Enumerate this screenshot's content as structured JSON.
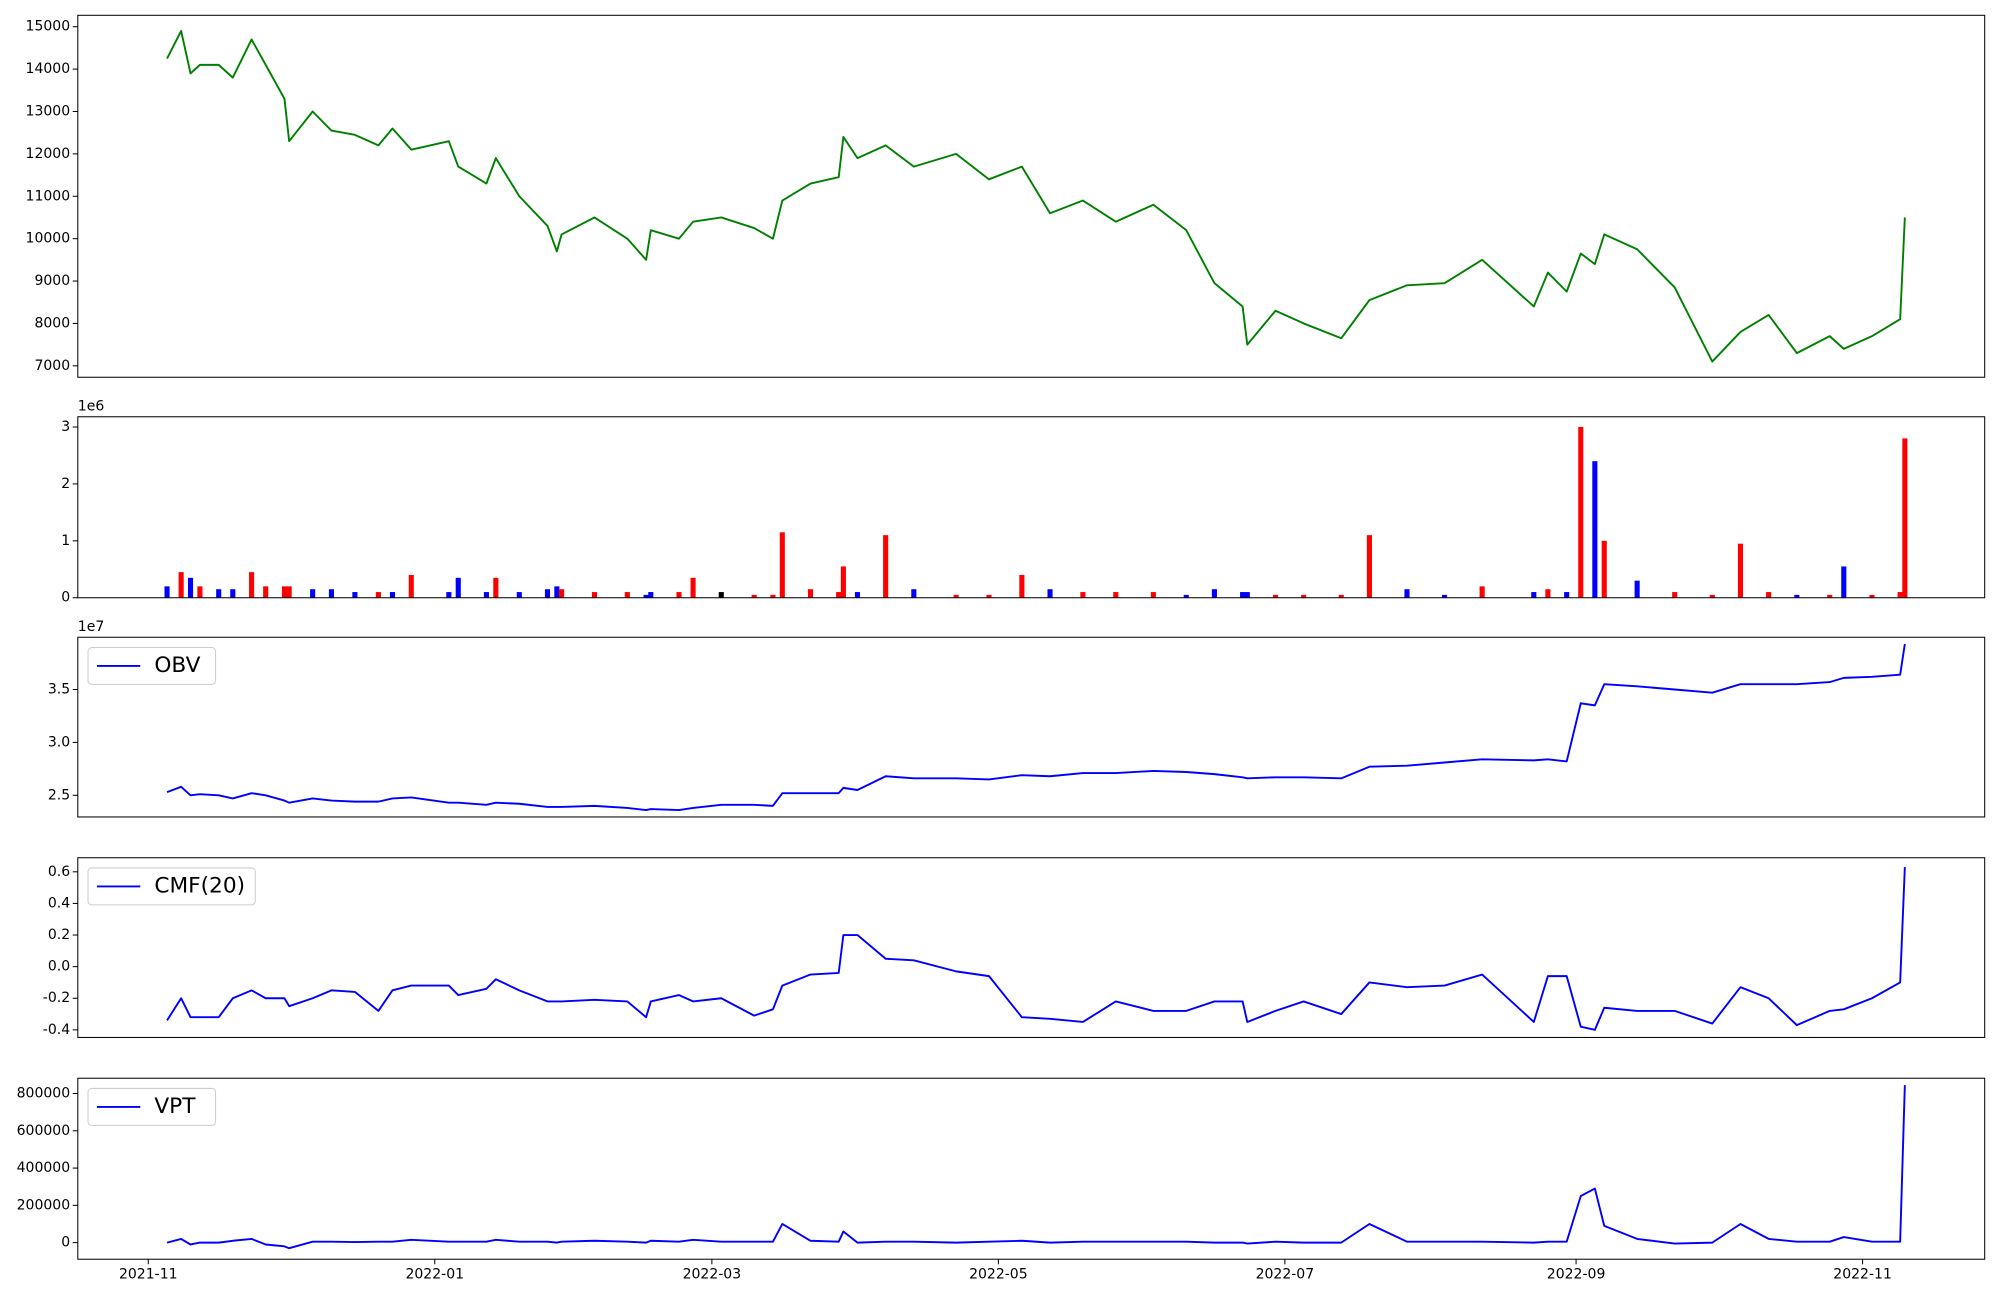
{
  "chart_data": [
    {
      "type": "line",
      "color": "#008000",
      "x": [
        "2021-11-05",
        "2021-11-08",
        "2021-11-10",
        "2021-11-12",
        "2021-11-16",
        "2021-11-19",
        "2021-11-23",
        "2021-11-26",
        "2021-11-30",
        "2021-12-01",
        "2021-12-06",
        "2021-12-10",
        "2021-12-15",
        "2021-12-20",
        "2021-12-23",
        "2021-12-27",
        "2022-01-04",
        "2022-01-06",
        "2022-01-12",
        "2022-01-14",
        "2022-01-19",
        "2022-01-25",
        "2022-01-27",
        "2022-01-28",
        "2022-02-04",
        "2022-02-11",
        "2022-02-15",
        "2022-02-16",
        "2022-02-22",
        "2022-02-25",
        "2022-03-03",
        "2022-03-10",
        "2022-03-14",
        "2022-03-16",
        "2022-03-22",
        "2022-03-28",
        "2022-03-29",
        "2022-04-01",
        "2022-04-07",
        "2022-04-13",
        "2022-04-22",
        "2022-04-29",
        "2022-05-06",
        "2022-05-12",
        "2022-05-19",
        "2022-05-26",
        "2022-06-03",
        "2022-06-10",
        "2022-06-16",
        "2022-06-22",
        "2022-06-23",
        "2022-06-29",
        "2022-07-05",
        "2022-07-13",
        "2022-07-19",
        "2022-07-27",
        "2022-08-04",
        "2022-08-12",
        "2022-08-23",
        "2022-08-26",
        "2022-08-30",
        "2022-09-02",
        "2022-09-05",
        "2022-09-07",
        "2022-09-14",
        "2022-09-22",
        "2022-09-30",
        "2022-10-06",
        "2022-10-12",
        "2022-10-18",
        "2022-10-25",
        "2022-10-28",
        "2022-11-03",
        "2022-11-09",
        "2022-11-10"
      ],
      "values": [
        14250,
        14900,
        13900,
        14100,
        14100,
        13800,
        14700,
        14100,
        13300,
        12300,
        13000,
        12550,
        12450,
        12200,
        12600,
        12100,
        12300,
        11700,
        11300,
        11900,
        11000,
        10300,
        9700,
        10100,
        10500,
        10000,
        9500,
        10200,
        10000,
        10400,
        10500,
        10250,
        10000,
        10900,
        11300,
        11450,
        12400,
        11900,
        12200,
        11700,
        12000,
        11400,
        11700,
        10600,
        10900,
        10400,
        10800,
        10200,
        8950,
        8400,
        7500,
        8300,
        8000,
        7650,
        8550,
        8900,
        8950,
        9500,
        8400,
        9200,
        8750,
        9650,
        9400,
        10100,
        9750,
        8850,
        7100,
        7800,
        8200,
        7300,
        7700,
        7400,
        7700,
        8100,
        10500
      ],
      "xlim": [
        "2021-10-17",
        "2022-11-27"
      ],
      "ylim": [
        6730,
        15270
      ],
      "yticks": [
        7000,
        8000,
        9000,
        10000,
        11000,
        12000,
        13000,
        14000,
        15000
      ]
    },
    {
      "type": "bar",
      "y_offset_label": "1e6",
      "x": [
        "2021-11-05",
        "2021-11-08",
        "2021-11-10",
        "2021-11-12",
        "2021-11-16",
        "2021-11-19",
        "2021-11-23",
        "2021-11-26",
        "2021-11-30",
        "2021-12-01",
        "2021-12-06",
        "2021-12-10",
        "2021-12-15",
        "2021-12-20",
        "2021-12-23",
        "2021-12-27",
        "2022-01-04",
        "2022-01-06",
        "2022-01-12",
        "2022-01-14",
        "2022-01-19",
        "2022-01-25",
        "2022-01-27",
        "2022-01-28",
        "2022-02-04",
        "2022-02-11",
        "2022-02-15",
        "2022-02-16",
        "2022-02-22",
        "2022-02-25",
        "2022-03-03",
        "2022-03-10",
        "2022-03-14",
        "2022-03-16",
        "2022-03-22",
        "2022-03-28",
        "2022-03-29",
        "2022-04-01",
        "2022-04-07",
        "2022-04-13",
        "2022-04-22",
        "2022-04-29",
        "2022-05-06",
        "2022-05-12",
        "2022-05-19",
        "2022-05-26",
        "2022-06-03",
        "2022-06-10",
        "2022-06-16",
        "2022-06-22",
        "2022-06-23",
        "2022-06-29",
        "2022-07-05",
        "2022-07-13",
        "2022-07-19",
        "2022-07-27",
        "2022-08-04",
        "2022-08-12",
        "2022-08-23",
        "2022-08-26",
        "2022-08-30",
        "2022-09-02",
        "2022-09-05",
        "2022-09-07",
        "2022-09-14",
        "2022-09-22",
        "2022-09-30",
        "2022-10-06",
        "2022-10-12",
        "2022-10-18",
        "2022-10-25",
        "2022-10-28",
        "2022-11-03",
        "2022-11-09",
        "2022-11-10"
      ],
      "values": [
        0.2,
        0.45,
        0.35,
        0.2,
        0.15,
        0.15,
        0.45,
        0.2,
        0.2,
        0.2,
        0.15,
        0.15,
        0.1,
        0.1,
        0.1,
        0.4,
        0.1,
        0.35,
        0.1,
        0.35,
        0.1,
        0.15,
        0.2,
        0.15,
        0.1,
        0.1,
        0.05,
        0.1,
        0.1,
        0.35,
        0.1,
        0.05,
        0.05,
        1.15,
        0.15,
        0.1,
        0.55,
        0.1,
        1.1,
        0.15,
        0.05,
        0.05,
        0.4,
        0.15,
        0.1,
        0.1,
        0.1,
        0.05,
        0.15,
        0.1,
        0.1,
        0.05,
        0.05,
        0.05,
        1.1,
        0.15,
        0.05,
        0.2,
        0.1,
        0.15,
        0.1,
        3.0,
        2.4,
        1.0,
        0.3,
        0.1,
        0.05,
        0.95,
        0.1,
        0.05,
        0.05,
        0.55,
        0.05,
        0.1,
        2.8
      ],
      "colors": [
        "blue",
        "red",
        "blue",
        "red",
        "blue",
        "blue",
        "red",
        "red",
        "red",
        "red",
        "blue",
        "blue",
        "blue",
        "red",
        "blue",
        "red",
        "blue",
        "blue",
        "blue",
        "red",
        "blue",
        "blue",
        "blue",
        "red",
        "red",
        "red",
        "blue",
        "blue",
        "red",
        "red",
        "black",
        "red",
        "red",
        "red",
        "red",
        "red",
        "red",
        "blue",
        "red",
        "blue",
        "red",
        "red",
        "red",
        "blue",
        "red",
        "red",
        "red",
        "blue",
        "blue",
        "blue",
        "blue",
        "red",
        "red",
        "red",
        "red",
        "blue",
        "blue",
        "red",
        "blue",
        "red",
        "blue",
        "red",
        "blue",
        "red",
        "blue",
        "red",
        "red",
        "red",
        "red",
        "blue",
        "red",
        "blue",
        "red",
        "red",
        "red"
      ],
      "xlim": [
        "2021-10-17",
        "2022-11-27"
      ],
      "ylim": [
        0,
        3.18
      ],
      "yticks": [
        0,
        1,
        2,
        3
      ]
    },
    {
      "type": "line",
      "y_offset_label": "1e7",
      "legend": "upper left",
      "x": [
        "2021-11-05",
        "2021-11-08",
        "2021-11-10",
        "2021-11-12",
        "2021-11-16",
        "2021-11-19",
        "2021-11-23",
        "2021-11-26",
        "2021-11-30",
        "2021-12-01",
        "2021-12-06",
        "2021-12-10",
        "2021-12-15",
        "2021-12-20",
        "2021-12-23",
        "2021-12-27",
        "2022-01-04",
        "2022-01-06",
        "2022-01-12",
        "2022-01-14",
        "2022-01-19",
        "2022-01-25",
        "2022-01-27",
        "2022-01-28",
        "2022-02-04",
        "2022-02-11",
        "2022-02-15",
        "2022-02-16",
        "2022-02-22",
        "2022-02-25",
        "2022-03-03",
        "2022-03-10",
        "2022-03-14",
        "2022-03-16",
        "2022-03-22",
        "2022-03-28",
        "2022-03-29",
        "2022-04-01",
        "2022-04-07",
        "2022-04-13",
        "2022-04-22",
        "2022-04-29",
        "2022-05-06",
        "2022-05-12",
        "2022-05-19",
        "2022-05-26",
        "2022-06-03",
        "2022-06-10",
        "2022-06-16",
        "2022-06-22",
        "2022-06-23",
        "2022-06-29",
        "2022-07-05",
        "2022-07-13",
        "2022-07-19",
        "2022-07-27",
        "2022-08-04",
        "2022-08-12",
        "2022-08-23",
        "2022-08-26",
        "2022-08-30",
        "2022-09-02",
        "2022-09-05",
        "2022-09-07",
        "2022-09-14",
        "2022-09-22",
        "2022-09-30",
        "2022-10-06",
        "2022-10-12",
        "2022-10-18",
        "2022-10-25",
        "2022-10-28",
        "2022-11-03",
        "2022-11-09",
        "2022-11-10"
      ],
      "series": [
        {
          "name": "OBV",
          "color": "#0000ff",
          "values": [
            2.53,
            2.58,
            2.5,
            2.51,
            2.5,
            2.47,
            2.52,
            2.5,
            2.45,
            2.43,
            2.47,
            2.45,
            2.44,
            2.44,
            2.47,
            2.48,
            2.43,
            2.43,
            2.41,
            2.43,
            2.42,
            2.39,
            2.39,
            2.39,
            2.4,
            2.38,
            2.36,
            2.37,
            2.36,
            2.38,
            2.41,
            2.41,
            2.4,
            2.52,
            2.52,
            2.52,
            2.57,
            2.55,
            2.68,
            2.66,
            2.66,
            2.65,
            2.69,
            2.68,
            2.71,
            2.71,
            2.73,
            2.72,
            2.7,
            2.67,
            2.66,
            2.67,
            2.67,
            2.66,
            2.77,
            2.78,
            2.81,
            2.84,
            2.83,
            2.84,
            2.82,
            3.37,
            3.35,
            3.55,
            3.53,
            3.5,
            3.47,
            3.55,
            3.55,
            3.55,
            3.57,
            3.61,
            3.62,
            3.64,
            3.93
          ]
        }
      ],
      "xlim": [
        "2021-10-17",
        "2022-11-27"
      ],
      "ylim": [
        2.295,
        3.994
      ],
      "yticks": [
        2.5,
        {
          "value": 3,
          "label": "3.0"
        },
        3.5
      ]
    },
    {
      "type": "line",
      "legend": "upper left",
      "x": [
        "2021-11-05",
        "2021-11-08",
        "2021-11-10",
        "2021-11-12",
        "2021-11-16",
        "2021-11-19",
        "2021-11-23",
        "2021-11-26",
        "2021-11-30",
        "2021-12-01",
        "2021-12-06",
        "2021-12-10",
        "2021-12-15",
        "2021-12-20",
        "2021-12-23",
        "2021-12-27",
        "2022-01-04",
        "2022-01-06",
        "2022-01-12",
        "2022-01-14",
        "2022-01-19",
        "2022-01-25",
        "2022-01-27",
        "2022-01-28",
        "2022-02-04",
        "2022-02-11",
        "2022-02-15",
        "2022-02-16",
        "2022-02-22",
        "2022-02-25",
        "2022-03-03",
        "2022-03-10",
        "2022-03-14",
        "2022-03-16",
        "2022-03-22",
        "2022-03-28",
        "2022-03-29",
        "2022-04-01",
        "2022-04-07",
        "2022-04-13",
        "2022-04-22",
        "2022-04-29",
        "2022-05-06",
        "2022-05-12",
        "2022-05-19",
        "2022-05-26",
        "2022-06-03",
        "2022-06-10",
        "2022-06-16",
        "2022-06-22",
        "2022-06-23",
        "2022-06-29",
        "2022-07-05",
        "2022-07-13",
        "2022-07-19",
        "2022-07-27",
        "2022-08-04",
        "2022-08-12",
        "2022-08-23",
        "2022-08-26",
        "2022-08-30",
        "2022-09-02",
        "2022-09-05",
        "2022-09-07",
        "2022-09-14",
        "2022-09-22",
        "2022-09-30",
        "2022-10-06",
        "2022-10-12",
        "2022-10-18",
        "2022-10-25",
        "2022-10-28",
        "2022-11-03",
        "2022-11-09",
        "2022-11-10"
      ],
      "series": [
        {
          "name": "CMF(20)",
          "color": "#0000ff",
          "values": [
            -0.34,
            -0.2,
            -0.32,
            -0.32,
            -0.32,
            -0.2,
            -0.15,
            -0.2,
            -0.2,
            -0.25,
            -0.2,
            -0.15,
            -0.16,
            -0.28,
            -0.15,
            -0.12,
            -0.12,
            -0.18,
            -0.14,
            -0.08,
            -0.15,
            -0.22,
            -0.22,
            -0.22,
            -0.21,
            -0.22,
            -0.32,
            -0.22,
            -0.18,
            -0.22,
            -0.2,
            -0.31,
            -0.27,
            -0.12,
            -0.05,
            -0.04,
            0.2,
            0.2,
            0.05,
            0.04,
            -0.03,
            -0.06,
            -0.32,
            -0.33,
            -0.35,
            -0.22,
            -0.28,
            -0.28,
            -0.22,
            -0.22,
            -0.35,
            -0.28,
            -0.22,
            -0.3,
            -0.1,
            -0.13,
            -0.12,
            -0.05,
            -0.35,
            -0.06,
            -0.06,
            -0.38,
            -0.4,
            -0.26,
            -0.28,
            -0.28,
            -0.36,
            -0.13,
            -0.2,
            -0.37,
            -0.28,
            -0.27,
            -0.2,
            -0.1,
            0.63
          ]
        }
      ],
      "xlim": [
        "2021-10-17",
        "2022-11-27"
      ],
      "ylim": [
        -0.448,
        0.689
      ],
      "yticks": [
        -0.4,
        -0.2,
        {
          "value": 0,
          "label": "0.0"
        },
        0.2,
        0.4,
        0.6
      ]
    },
    {
      "type": "line",
      "legend": "upper left",
      "x": [
        "2021-11-05",
        "2021-11-08",
        "2021-11-10",
        "2021-11-12",
        "2021-11-16",
        "2021-11-19",
        "2021-11-23",
        "2021-11-26",
        "2021-11-30",
        "2021-12-01",
        "2021-12-06",
        "2021-12-10",
        "2021-12-15",
        "2021-12-20",
        "2021-12-23",
        "2021-12-27",
        "2022-01-04",
        "2022-01-06",
        "2022-01-12",
        "2022-01-14",
        "2022-01-19",
        "2022-01-25",
        "2022-01-27",
        "2022-01-28",
        "2022-02-04",
        "2022-02-11",
        "2022-02-15",
        "2022-02-16",
        "2022-02-22",
        "2022-02-25",
        "2022-03-03",
        "2022-03-10",
        "2022-03-14",
        "2022-03-16",
        "2022-03-22",
        "2022-03-28",
        "2022-03-29",
        "2022-04-01",
        "2022-04-07",
        "2022-04-13",
        "2022-04-22",
        "2022-04-29",
        "2022-05-06",
        "2022-05-12",
        "2022-05-19",
        "2022-05-26",
        "2022-06-03",
        "2022-06-10",
        "2022-06-16",
        "2022-06-22",
        "2022-06-23",
        "2022-06-29",
        "2022-07-05",
        "2022-07-13",
        "2022-07-19",
        "2022-07-27",
        "2022-08-04",
        "2022-08-12",
        "2022-08-23",
        "2022-08-26",
        "2022-08-30",
        "2022-09-02",
        "2022-09-05",
        "2022-09-07",
        "2022-09-14",
        "2022-09-22",
        "2022-09-30",
        "2022-10-06",
        "2022-10-12",
        "2022-10-18",
        "2022-10-25",
        "2022-10-28",
        "2022-11-03",
        "2022-11-09",
        "2022-11-10"
      ],
      "series": [
        {
          "name": "VPT",
          "color": "#0000ff",
          "values": [
            0,
            20000,
            -10000,
            0,
            0,
            10000,
            20000,
            -10000,
            -20000,
            -30000,
            5000,
            5000,
            3000,
            5000,
            5000,
            15000,
            5000,
            5000,
            5000,
            15000,
            5000,
            5000,
            0,
            5000,
            10000,
            5000,
            0,
            10000,
            5000,
            15000,
            5000,
            5000,
            5000,
            100000,
            10000,
            5000,
            60000,
            0,
            5000,
            5000,
            0,
            5000,
            10000,
            0,
            5000,
            5000,
            5000,
            5000,
            0,
            0,
            -5000,
            5000,
            0,
            0,
            100000,
            5000,
            5000,
            5000,
            0,
            5000,
            5000,
            250000,
            290000,
            90000,
            20000,
            -5000,
            0,
            100000,
            20000,
            5000,
            5000,
            30000,
            5000,
            5000,
            845000
          ]
        }
      ],
      "xlim": [
        "2021-10-17",
        "2022-11-27"
      ],
      "ylim": [
        -89000,
        882000
      ],
      "yticks": [
        0,
        200000,
        400000,
        600000,
        800000
      ],
      "xticks": [
        "2021-11",
        "2022-01",
        "2022-03",
        "2022-05",
        "2022-07",
        "2022-09",
        "2022-11"
      ]
    }
  ]
}
